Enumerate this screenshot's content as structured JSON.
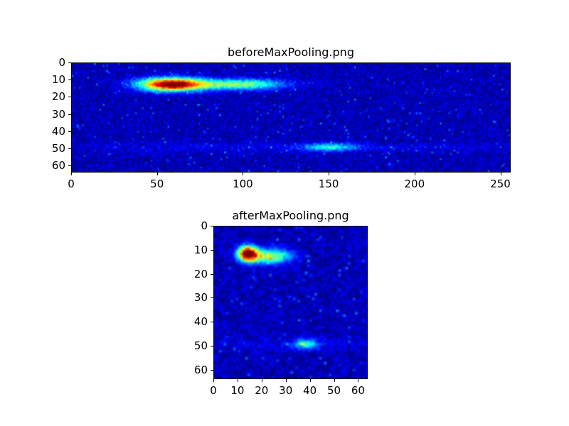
{
  "figure": {
    "background": "#ffffff",
    "colormap_accent_colors": {
      "background_blue": "#0000a0",
      "hot_core_red": "#d40000",
      "mid_yellow": "#ffff00",
      "tail_green": "#40ff80",
      "faint_cyan": "#00c8ff"
    }
  },
  "chart_data": [
    {
      "type": "heatmap",
      "title": "beforeMaxPooling.png",
      "data_width": 256,
      "data_height": 64,
      "xticks": [
        0,
        50,
        100,
        150,
        200,
        250
      ],
      "yticks": [
        0,
        10,
        20,
        30,
        40,
        50,
        60
      ],
      "xlim": [
        0,
        256
      ],
      "ylim": [
        64,
        0
      ],
      "colormap": "jet",
      "grid": false,
      "legend": false,
      "background_level": 0.04,
      "noise_level": 0.12,
      "features": [
        {
          "label": "main-activation-streak",
          "cx": 58,
          "cy": 12,
          "sx": 13,
          "sy": 2.6,
          "peak": 1.0
        },
        {
          "label": "activation-tail",
          "cx": 98,
          "cy": 12,
          "sx": 18,
          "sy": 2.2,
          "peak": 0.45
        },
        {
          "label": "faint-secondary-streak",
          "cx": 150,
          "cy": 49,
          "sx": 11,
          "sy": 1.6,
          "peak": 0.3
        },
        {
          "label": "faint-row-band",
          "cx": 128,
          "cy": 49,
          "sx": 120,
          "sy": 2.0,
          "peak": 0.05
        }
      ]
    },
    {
      "type": "heatmap",
      "title": "afterMaxPooling.png",
      "data_width": 64,
      "data_height": 64,
      "xticks": [
        0,
        10,
        20,
        30,
        40,
        50,
        60
      ],
      "yticks": [
        0,
        10,
        20,
        30,
        40,
        50,
        60
      ],
      "xlim": [
        0,
        64
      ],
      "ylim": [
        64,
        0
      ],
      "colormap": "jet",
      "grid": false,
      "legend": false,
      "background_level": 0.04,
      "noise_level": 0.12,
      "features": [
        {
          "label": "main-activation-blob",
          "cx": 13.5,
          "cy": 11,
          "sx": 2.8,
          "sy": 2.2,
          "peak": 1.0
        },
        {
          "label": "activation-tail",
          "cx": 23,
          "cy": 12,
          "sx": 6,
          "sy": 2.2,
          "peak": 0.5
        },
        {
          "label": "faint-secondary-spot",
          "cx": 38,
          "cy": 49,
          "sx": 3.5,
          "sy": 1.5,
          "peak": 0.32
        },
        {
          "label": "faint-row-band",
          "cx": 32,
          "cy": 49,
          "sx": 30,
          "sy": 2.0,
          "peak": 0.05
        }
      ]
    }
  ]
}
